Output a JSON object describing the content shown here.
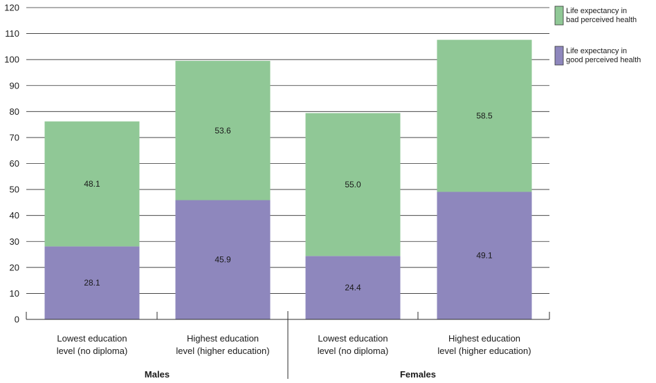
{
  "chart_data": {
    "type": "bar",
    "stacked": true,
    "categories": [
      [
        "Lowest education",
        "level (no diploma)"
      ],
      [
        "Highest education",
        "level (higher education)"
      ],
      [
        "Lowest education",
        "level (no diploma)"
      ],
      [
        "Highest education",
        "level (higher education)"
      ]
    ],
    "groups": [
      {
        "label": "Males",
        "categories": [
          0,
          1
        ]
      },
      {
        "label": "Females",
        "categories": [
          2,
          3
        ]
      }
    ],
    "series": [
      {
        "name": [
          "Life expectancy in",
          "good perceived health"
        ],
        "color": "#8e87bd",
        "values": [
          28.1,
          45.9,
          24.4,
          49.1
        ],
        "labels": [
          "28.1",
          "45.9",
          "24.4",
          "49.1"
        ]
      },
      {
        "name": [
          "Life expectancy in",
          "bad perceived health"
        ],
        "color": "#90c896",
        "values": [
          48.1,
          53.6,
          55.0,
          58.5
        ],
        "labels": [
          "48.1",
          "53.6",
          "55.0",
          "58.5"
        ]
      }
    ],
    "ylim": [
      0,
      120
    ],
    "yticks": [
      0,
      10,
      20,
      30,
      40,
      50,
      60,
      70,
      80,
      90,
      100,
      110,
      120
    ],
    "grid": true,
    "legend": "top-right"
  }
}
